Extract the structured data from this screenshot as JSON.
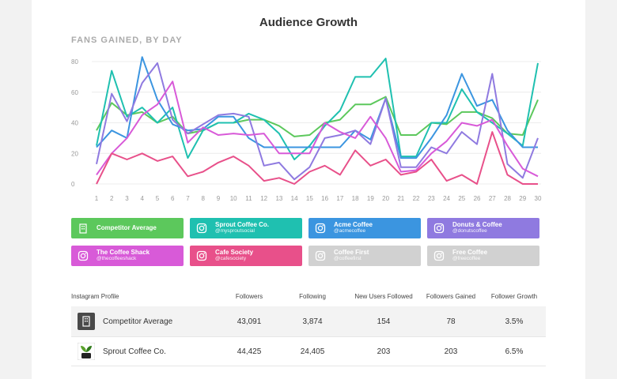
{
  "title": "Audience Growth",
  "subtitle": "FANS GAINED, BY DAY",
  "chart_data": {
    "type": "line",
    "title": "FANS GAINED, BY DAY",
    "xlabel": "",
    "ylabel": "",
    "ylim": [
      0,
      80
    ],
    "yticks": [
      0,
      20,
      40,
      60,
      80
    ],
    "x": [
      1,
      2,
      3,
      4,
      5,
      6,
      7,
      8,
      9,
      10,
      11,
      12,
      13,
      14,
      15,
      16,
      17,
      18,
      19,
      20,
      21,
      22,
      23,
      24,
      25,
      26,
      27,
      28,
      29,
      30
    ],
    "grid": true,
    "series": [
      {
        "name": "Competitor Average",
        "color": "#5cc85c",
        "values": [
          35,
          53,
          45,
          47,
          40,
          44,
          33,
          35,
          40,
          40,
          42,
          42,
          38,
          31,
          32,
          40,
          42,
          52,
          52,
          57,
          32,
          32,
          40,
          39,
          47,
          47,
          43,
          33,
          32,
          55
        ]
      },
      {
        "name": "Sprout Coffee Co.",
        "color": "#1fc0b0",
        "values": [
          25,
          74,
          44,
          50,
          40,
          50,
          17,
          35,
          40,
          40,
          46,
          42,
          33,
          16,
          25,
          38,
          48,
          70,
          70,
          82,
          18,
          18,
          40,
          40,
          62,
          47,
          40,
          33,
          25,
          79
        ]
      },
      {
        "name": "Acme Coffee",
        "color": "#3b95e0",
        "values": [
          24,
          35,
          30,
          83,
          55,
          39,
          35,
          36,
          44,
          44,
          30,
          24,
          24,
          24,
          24,
          24,
          24,
          35,
          29,
          56,
          17,
          17,
          30,
          45,
          72,
          51,
          55,
          35,
          24,
          24
        ]
      },
      {
        "name": "Donuts & Coffee",
        "color": "#8f7ae0",
        "values": [
          13,
          59,
          41,
          66,
          79,
          42,
          33,
          39,
          45,
          46,
          44,
          12,
          14,
          3,
          11,
          30,
          32,
          35,
          26,
          56,
          11,
          11,
          24,
          20,
          34,
          26,
          72,
          13,
          4,
          30
        ]
      },
      {
        "name": "The Coffee Shack",
        "color": "#d85ad8",
        "values": [
          6,
          20,
          30,
          45,
          52,
          67,
          27,
          37,
          32,
          33,
          32,
          33,
          20,
          20,
          20,
          40,
          34,
          30,
          44,
          30,
          8,
          9,
          20,
          28,
          40,
          38,
          42,
          25,
          10,
          5
        ]
      },
      {
        "name": "Cafe Society",
        "color": "#e8508a",
        "values": [
          0,
          20,
          16,
          20,
          15,
          18,
          5,
          8,
          14,
          18,
          12,
          2,
          4,
          0,
          8,
          12,
          6,
          22,
          12,
          16,
          6,
          8,
          16,
          2,
          6,
          0,
          34,
          6,
          0,
          0
        ]
      }
    ]
  },
  "legend": [
    {
      "name": "Competitor Average",
      "handle": "",
      "color": "#5cc85c",
      "icon": "building-icon"
    },
    {
      "name": "Sprout Coffee Co.",
      "handle": "@mysproutsocial",
      "color": "#1fc0b0",
      "icon": "instagram-icon"
    },
    {
      "name": "Acme Coffee",
      "handle": "@acmecoffee",
      "color": "#3b95e0",
      "icon": "instagram-icon"
    },
    {
      "name": "Donuts & Coffee",
      "handle": "@donutscoffee",
      "color": "#8f7ae0",
      "icon": "instagram-icon"
    },
    {
      "name": "The Coffee Shack",
      "handle": "@thecoffeeshack",
      "color": "#d85ad8",
      "icon": "instagram-icon"
    },
    {
      "name": "Cafe Society",
      "handle": "@cafesociety",
      "color": "#e8508a",
      "icon": "instagram-icon"
    },
    {
      "name": "Coffee First",
      "handle": "@coffeefirst",
      "color": "#d1d1d1",
      "icon": "instagram-icon"
    },
    {
      "name": "Free Coffee",
      "handle": "@freecoffee",
      "color": "#d1d1d1",
      "icon": "instagram-icon"
    }
  ],
  "table": {
    "headers": [
      "Instagram Profile",
      "Followers",
      "Following",
      "New Users Followed",
      "Followers Gained",
      "Follower Growth"
    ],
    "rows": [
      {
        "profile": "Competitor Average",
        "followers": "43,091",
        "following": "3,874",
        "new_users_followed": "154",
        "followers_gained": "78",
        "follower_growth": "3.5%",
        "avatar": "building-icon"
      },
      {
        "profile": "Sprout Coffee Co.",
        "followers": "44,425",
        "following": "24,405",
        "new_users_followed": "203",
        "followers_gained": "203",
        "follower_growth": "6.5%",
        "avatar": "sprout-logo"
      }
    ]
  }
}
